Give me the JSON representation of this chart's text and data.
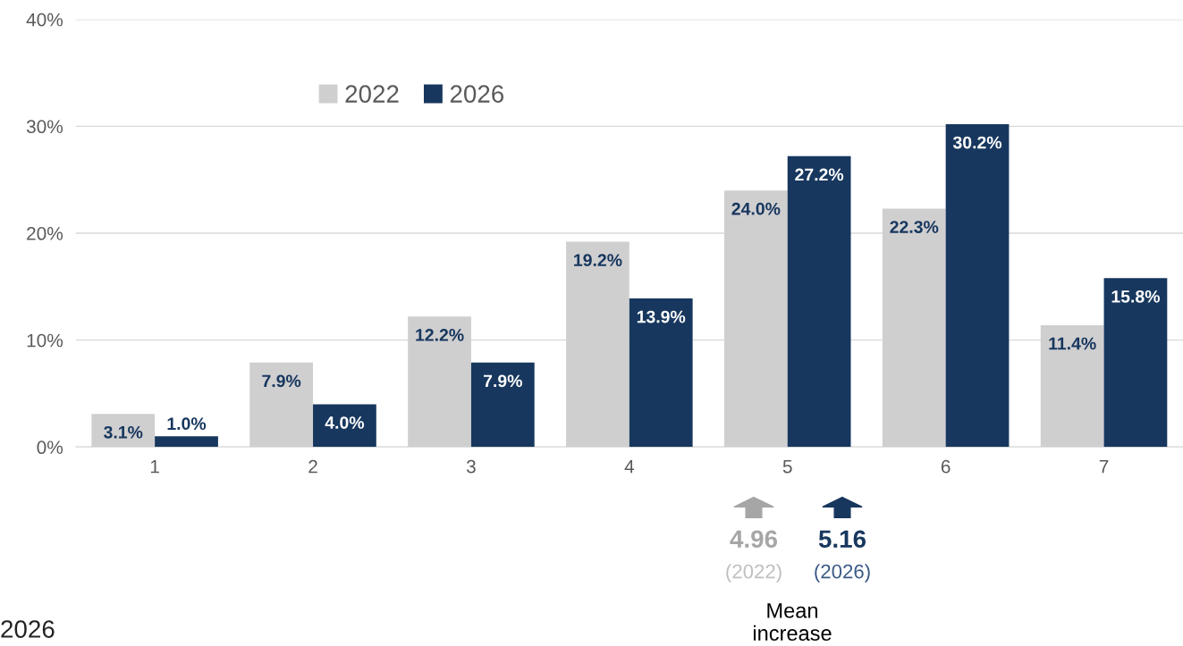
{
  "chart_data": {
    "type": "bar",
    "categories": [
      "1",
      "2",
      "3",
      "4",
      "5",
      "6",
      "7"
    ],
    "series": [
      {
        "name": "2022",
        "color": "#d0cfd0",
        "values": [
          3.1,
          7.9,
          12.2,
          19.2,
          24.0,
          22.3,
          11.4
        ],
        "value_labels": [
          "3.1%",
          "7.9%",
          "12.2%",
          "19.2%",
          "24.0%",
          "22.3%",
          "11.4%"
        ]
      },
      {
        "name": "2026",
        "color": "#17375e",
        "values": [
          1.0,
          4.0,
          7.9,
          13.9,
          27.2,
          30.2,
          15.8
        ],
        "value_labels": [
          "1.0%",
          "4.0%",
          "7.9%",
          "13.9%",
          "27.2%",
          "30.2%",
          "15.8%"
        ]
      }
    ],
    "ylim": [
      0,
      40
    ],
    "yticks": [
      {
        "value": 0,
        "label": "0%"
      },
      {
        "value": 10,
        "label": "10%"
      },
      {
        "value": 20,
        "label": "20%"
      },
      {
        "value": 30,
        "label": "30%"
      },
      {
        "value": 40,
        "label": "40%"
      }
    ],
    "grid": "y",
    "legend": "top left",
    "annotations": [
      "4.96",
      "(2022)",
      "5.16",
      "(2026)",
      "Mean\nincrease",
      "2026"
    ]
  }
}
